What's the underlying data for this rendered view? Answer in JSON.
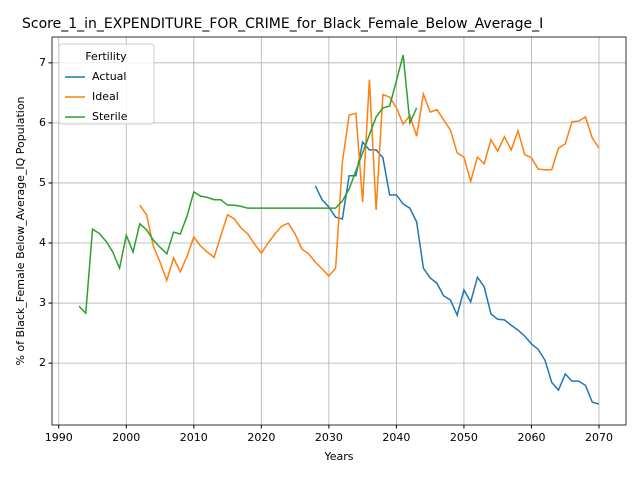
{
  "chart_data": {
    "type": "line",
    "title": "Score_1_in_EXPENDITURE_FOR_CRIME_for_Black_Female_Below_Average_I",
    "xlabel": "Years",
    "ylabel": "% of Black_Female Below_Average_IQ Population",
    "legend_title": "Fertility",
    "legend": "upper left",
    "grid": true,
    "xlim": [
      1989,
      2074
    ],
    "ylim": [
      0.97,
      7.43
    ],
    "xticks": [
      1990,
      2000,
      2010,
      2020,
      2030,
      2040,
      2050,
      2060,
      2070
    ],
    "yticks": [
      2,
      3,
      4,
      5,
      6,
      7
    ],
    "series": [
      {
        "name": "Actual",
        "color": "#1f77b4",
        "x": [
          2028,
          2029,
          2030,
          2031,
          2032,
          2033,
          2034,
          2035,
          2036,
          2037,
          2038,
          2039,
          2040,
          2041,
          2042,
          2043,
          2044,
          2045,
          2046,
          2047,
          2048,
          2049,
          2050,
          2051,
          2052,
          2053,
          2054,
          2055,
          2056,
          2057,
          2058,
          2059,
          2060,
          2061,
          2062,
          2063,
          2064,
          2065,
          2066,
          2067,
          2068,
          2069,
          2070
        ],
        "values": [
          4.95,
          4.72,
          4.6,
          4.43,
          4.4,
          5.12,
          5.12,
          5.68,
          5.55,
          5.55,
          5.42,
          4.8,
          4.8,
          4.65,
          4.58,
          4.35,
          3.58,
          3.42,
          3.33,
          3.12,
          3.05,
          2.8,
          3.22,
          3.02,
          3.43,
          3.27,
          2.82,
          2.73,
          2.72,
          2.63,
          2.55,
          2.45,
          2.32,
          2.23,
          2.05,
          1.68,
          1.55,
          1.82,
          1.7,
          1.7,
          1.63,
          1.35,
          1.32
        ]
      },
      {
        "name": "Ideal",
        "color": "#ff7f0e",
        "x": [
          2002,
          2003,
          2004,
          2005,
          2006,
          2007,
          2008,
          2009,
          2010,
          2011,
          2012,
          2013,
          2014,
          2015,
          2016,
          2017,
          2018,
          2019,
          2020,
          2021,
          2022,
          2023,
          2024,
          2025,
          2026,
          2027,
          2028,
          2029,
          2030,
          2031,
          2032,
          2033,
          2034,
          2035,
          2036,
          2037,
          2038,
          2039,
          2040,
          2041,
          2042,
          2043,
          2044,
          2045,
          2046,
          2047,
          2048,
          2049,
          2050,
          2051,
          2052,
          2053,
          2054,
          2055,
          2056,
          2057,
          2058,
          2059,
          2060,
          2061,
          2062,
          2063,
          2064,
          2065,
          2066,
          2067,
          2068,
          2069,
          2070
        ],
        "values": [
          4.63,
          4.47,
          3.95,
          3.68,
          3.38,
          3.75,
          3.52,
          3.78,
          4.1,
          3.95,
          3.85,
          3.76,
          4.12,
          4.47,
          4.4,
          4.25,
          4.15,
          3.98,
          3.83,
          4.0,
          4.15,
          4.28,
          4.33,
          4.15,
          3.9,
          3.82,
          3.68,
          3.57,
          3.45,
          3.58,
          5.35,
          6.13,
          6.16,
          4.68,
          6.72,
          4.55,
          6.47,
          6.43,
          6.25,
          5.98,
          6.12,
          5.78,
          6.48,
          6.18,
          6.22,
          6.05,
          5.88,
          5.5,
          5.43,
          5.03,
          5.43,
          5.32,
          5.72,
          5.53,
          5.77,
          5.55,
          5.87,
          5.47,
          5.42,
          5.23,
          5.22,
          5.22,
          5.58,
          5.65,
          6.02,
          6.03,
          6.1,
          5.75,
          5.58
        ]
      },
      {
        "name": "Sterile",
        "color": "#2ca02c",
        "x": [
          1993,
          1994,
          1995,
          1996,
          1997,
          1998,
          1999,
          2000,
          2001,
          2002,
          2003,
          2004,
          2005,
          2006,
          2007,
          2008,
          2009,
          2010,
          2011,
          2012,
          2013,
          2014,
          2015,
          2016,
          2017,
          2018,
          2019,
          2020,
          2021,
          2022,
          2023,
          2024,
          2025,
          2026,
          2027,
          2028,
          2029,
          2030,
          2031,
          2032,
          2033,
          2034,
          2035,
          2036,
          2037,
          2038,
          2039,
          2040,
          2041,
          2042,
          2043
        ],
        "values": [
          2.95,
          2.83,
          4.23,
          4.16,
          4.03,
          3.85,
          3.58,
          4.13,
          3.85,
          4.32,
          4.22,
          4.05,
          3.93,
          3.82,
          4.18,
          4.15,
          4.45,
          4.85,
          4.78,
          4.76,
          4.72,
          4.72,
          4.63,
          4.63,
          4.61,
          4.58,
          4.58,
          4.58,
          4.58,
          4.58,
          4.58,
          4.58,
          4.58,
          4.58,
          4.58,
          4.58,
          4.58,
          4.58,
          4.58,
          4.7,
          4.9,
          5.2,
          5.5,
          5.8,
          6.1,
          6.25,
          6.28,
          6.7,
          7.13,
          6.0,
          6.25
        ]
      }
    ]
  }
}
